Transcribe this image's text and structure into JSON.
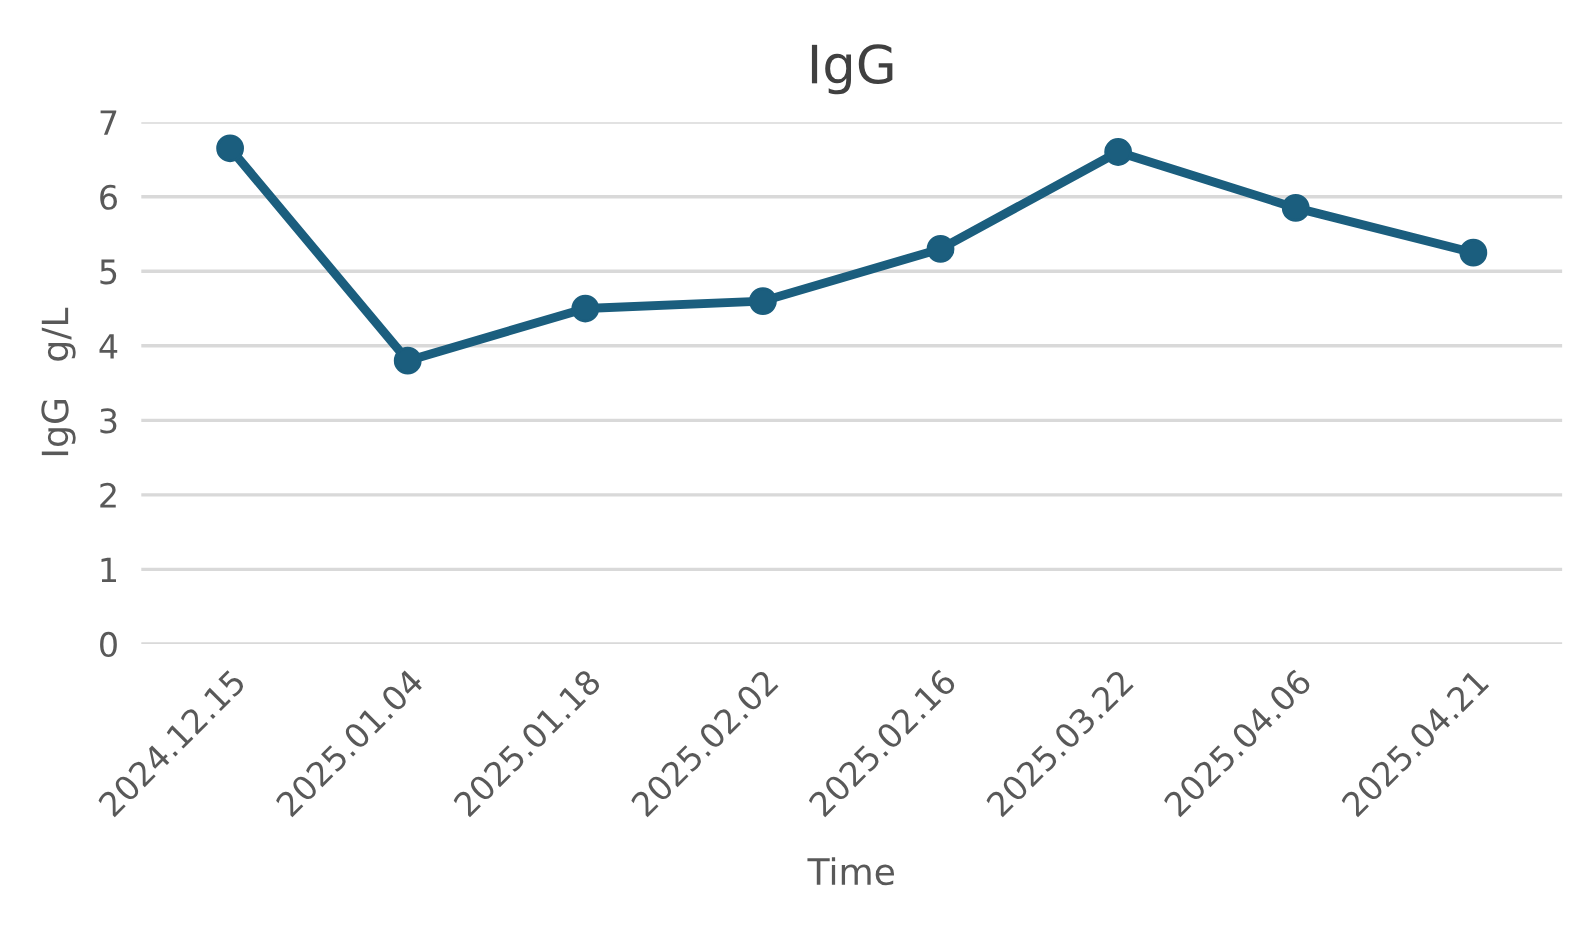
{
  "chart_data": {
    "type": "line",
    "title": "IgG",
    "xlabel": "Time",
    "ylabel": "IgG   g/L",
    "categories": [
      "2024.12.15",
      "2025.01.04",
      "2025.01.18",
      "2025.02.02",
      "2025.02.16",
      "2025.03.22",
      "2025.04.06",
      "2025.04.21"
    ],
    "series": [
      {
        "color": "#1b5e7e",
        "values": [
          6.65,
          3.8,
          4.5,
          4.6,
          5.3,
          6.6,
          5.85,
          5.25
        ]
      }
    ],
    "ylim": [
      0,
      7
    ],
    "yticks": [
      0,
      1,
      2,
      3,
      4,
      5,
      6,
      7
    ],
    "grid": "y",
    "marker": "circle",
    "line_style": "solid"
  }
}
